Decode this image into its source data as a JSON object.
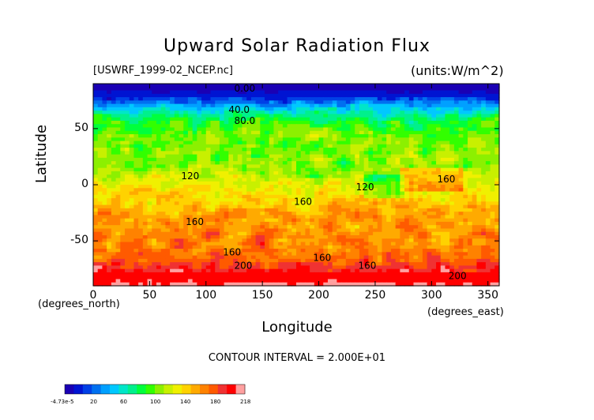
{
  "chart_data": {
    "type": "heatmap",
    "title": "Upward Solar Radiation Flux",
    "file_label": "[USWRF_1999-02_NCEP.nc]",
    "units_label": "(units:W/m^2)",
    "xlabel": "Longitude",
    "ylabel": "Latitude",
    "x_unit_label": "(degrees_north)",
    "x_unit_label_right": "(degrees_east)",
    "xlim": [
      0,
      360
    ],
    "ylim": [
      -90,
      90
    ],
    "x_ticks": [
      "0",
      "50",
      "100",
      "150",
      "200",
      "250",
      "300",
      "350"
    ],
    "x_tick_values": [
      0,
      50,
      100,
      150,
      200,
      250,
      300,
      350
    ],
    "y_ticks": [
      "50",
      "0",
      "-50"
    ],
    "y_tick_values": [
      50,
      0,
      -50
    ],
    "contour_interval_text": "CONTOUR INTERVAL = 2.000E+01",
    "contour_labels": [
      {
        "text": "0.00",
        "x": 125,
        "y": 83
      },
      {
        "text": "40.0",
        "x": 120,
        "y": 64
      },
      {
        "text": "80.0",
        "x": 125,
        "y": 54
      },
      {
        "text": "120",
        "x": 78,
        "y": 5
      },
      {
        "text": "120",
        "x": 233,
        "y": -5
      },
      {
        "text": "160",
        "x": 305,
        "y": 2
      },
      {
        "text": "160",
        "x": 178,
        "y": -18
      },
      {
        "text": "160",
        "x": 82,
        "y": -36
      },
      {
        "text": "160",
        "x": 115,
        "y": -63
      },
      {
        "text": "160",
        "x": 195,
        "y": -68
      },
      {
        "text": "160",
        "x": 235,
        "y": -75
      },
      {
        "text": "200",
        "x": 125,
        "y": -75
      },
      {
        "text": "200",
        "x": 315,
        "y": -84
      }
    ],
    "colorbar": {
      "min_label": "-4.73e-5",
      "labels": [
        "20",
        "60",
        "100",
        "140",
        "180",
        "218"
      ],
      "colors": [
        "#1a00b4",
        "#0014d2",
        "#0040e6",
        "#0070f0",
        "#00a0ff",
        "#00c8ff",
        "#00e6c8",
        "#00f08c",
        "#00ff3c",
        "#32ff00",
        "#8cf000",
        "#c8f000",
        "#f0f000",
        "#ffd200",
        "#ffaa00",
        "#ff8200",
        "#ff5a00",
        "#f03232",
        "#ff0000",
        "#ffa0a0"
      ]
    },
    "zonal_profile": [
      {
        "lat": 90,
        "v": 0
      },
      {
        "lat": 80,
        "v": 15
      },
      {
        "lat": 72,
        "v": 45
      },
      {
        "lat": 64,
        "v": 78
      },
      {
        "lat": 55,
        "v": 100
      },
      {
        "lat": 45,
        "v": 112
      },
      {
        "lat": 30,
        "v": 115
      },
      {
        "lat": 15,
        "v": 118
      },
      {
        "lat": 5,
        "v": 125
      },
      {
        "lat": -5,
        "v": 140
      },
      {
        "lat": -15,
        "v": 150
      },
      {
        "lat": -25,
        "v": 160
      },
      {
        "lat": -40,
        "v": 168
      },
      {
        "lat": -55,
        "v": 172
      },
      {
        "lat": -65,
        "v": 176
      },
      {
        "lat": -72,
        "v": 190
      },
      {
        "lat": -80,
        "v": 205
      },
      {
        "lat": -90,
        "v": 210
      }
    ]
  }
}
